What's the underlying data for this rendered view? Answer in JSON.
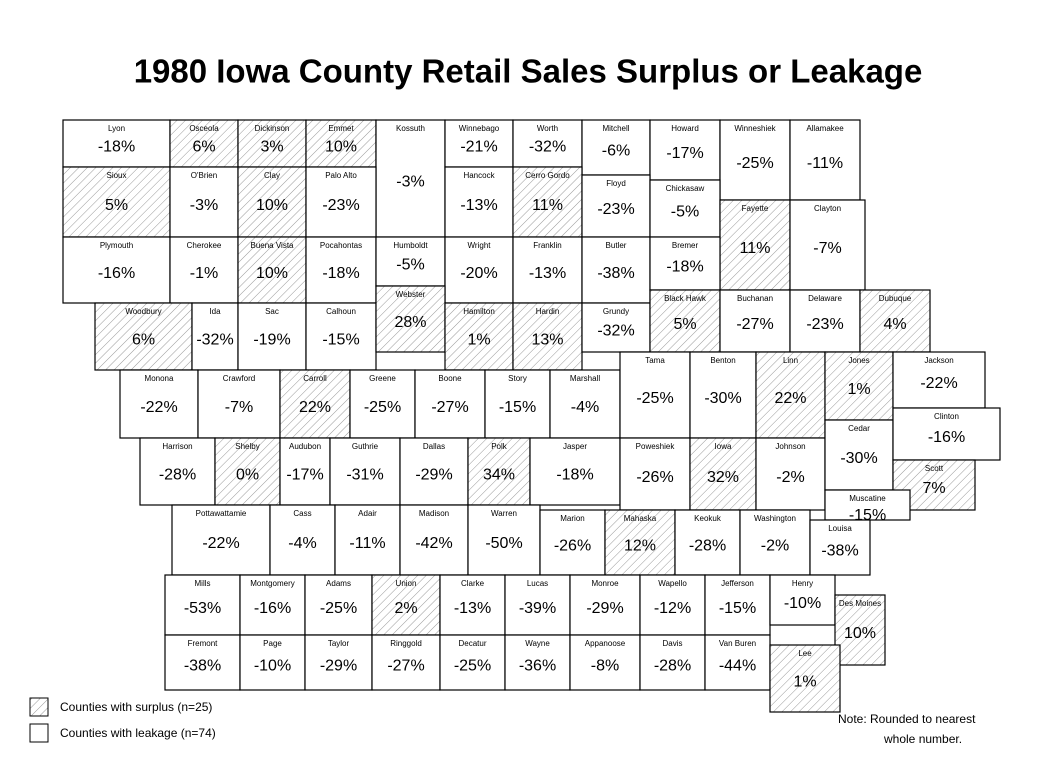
{
  "title": "1980 Iowa County Retail Sales Surplus or Leakage",
  "counties": [
    {
      "name": "Lyon",
      "value": "-18%",
      "surplus": false
    },
    {
      "name": "Osceola",
      "value": "6%",
      "surplus": true
    },
    {
      "name": "Dickinson",
      "value": "3%",
      "surplus": true
    },
    {
      "name": "Emmet",
      "value": "10%",
      "surplus": true
    },
    {
      "name": "Kossuth",
      "value": "-3%",
      "surplus": false
    },
    {
      "name": "Winnebago",
      "value": "-21%",
      "surplus": false
    },
    {
      "name": "Worth",
      "value": "-32%",
      "surplus": false
    },
    {
      "name": "Mitchell",
      "value": "-6%",
      "surplus": false
    },
    {
      "name": "Howard",
      "value": "-17%",
      "surplus": false
    },
    {
      "name": "Winneshiek",
      "value": "-25%",
      "surplus": false
    },
    {
      "name": "Allamakee",
      "value": "-11%",
      "surplus": false
    },
    {
      "name": "Sioux",
      "value": "5%",
      "surplus": true
    },
    {
      "name": "O'Brien",
      "value": "-3%",
      "surplus": false
    },
    {
      "name": "Clay",
      "value": "10%",
      "surplus": true
    },
    {
      "name": "Palo Alto",
      "value": "-23%",
      "surplus": false
    },
    {
      "name": "Hancock",
      "value": "-13%",
      "surplus": false
    },
    {
      "name": "Cerro Gordo",
      "value": "11%",
      "surplus": true
    },
    {
      "name": "Floyd",
      "value": "-23%",
      "surplus": false
    },
    {
      "name": "Chickasaw",
      "value": "-5%",
      "surplus": false
    },
    {
      "name": "Fayette",
      "value": "11%",
      "surplus": true
    },
    {
      "name": "Clayton",
      "value": "-7%",
      "surplus": false
    },
    {
      "name": "Plymouth",
      "value": "-16%",
      "surplus": false
    },
    {
      "name": "Cherokee",
      "value": "-1%",
      "surplus": false
    },
    {
      "name": "Buena Vista",
      "value": "10%",
      "surplus": true
    },
    {
      "name": "Pocahontas",
      "value": "-18%",
      "surplus": false
    },
    {
      "name": "Humboldt",
      "value": "-5%",
      "surplus": false
    },
    {
      "name": "Wright",
      "value": "-20%",
      "surplus": false
    },
    {
      "name": "Franklin",
      "value": "-13%",
      "surplus": false
    },
    {
      "name": "Butler",
      "value": "-38%",
      "surplus": false
    },
    {
      "name": "Bremer",
      "value": "-18%",
      "surplus": false
    },
    {
      "name": "Woodbury",
      "value": "6%",
      "surplus": true
    },
    {
      "name": "Ida",
      "value": "-32%",
      "surplus": false
    },
    {
      "name": "Sac",
      "value": "-19%",
      "surplus": false
    },
    {
      "name": "Calhoun",
      "value": "-15%",
      "surplus": false
    },
    {
      "name": "Webster",
      "value": "28%",
      "surplus": true
    },
    {
      "name": "Hamilton",
      "value": "1%",
      "surplus": true
    },
    {
      "name": "Hardin",
      "value": "13%",
      "surplus": true
    },
    {
      "name": "Grundy",
      "value": "-32%",
      "surplus": false
    },
    {
      "name": "Black Hawk",
      "value": "5%",
      "surplus": true
    },
    {
      "name": "Buchanan",
      "value": "-27%",
      "surplus": false
    },
    {
      "name": "Delaware",
      "value": "-23%",
      "surplus": false
    },
    {
      "name": "Dubuque",
      "value": "4%",
      "surplus": true
    },
    {
      "name": "Monona",
      "value": "-22%",
      "surplus": false
    },
    {
      "name": "Crawford",
      "value": "-7%",
      "surplus": false
    },
    {
      "name": "Carroll",
      "value": "22%",
      "surplus": true
    },
    {
      "name": "Greene",
      "value": "-25%",
      "surplus": false
    },
    {
      "name": "Boone",
      "value": "-27%",
      "surplus": false
    },
    {
      "name": "Story",
      "value": "-15%",
      "surplus": false
    },
    {
      "name": "Marshall",
      "value": "-4%",
      "surplus": false
    },
    {
      "name": "Tama",
      "value": "-25%",
      "surplus": false
    },
    {
      "name": "Benton",
      "value": "-30%",
      "surplus": false
    },
    {
      "name": "Linn",
      "value": "22%",
      "surplus": true
    },
    {
      "name": "Jones",
      "value": "1%",
      "surplus": true
    },
    {
      "name": "Jackson",
      "value": "-22%",
      "surplus": false
    },
    {
      "name": "Harrison",
      "value": "-28%",
      "surplus": false
    },
    {
      "name": "Shelby",
      "value": "0%",
      "surplus": true
    },
    {
      "name": "Audubon",
      "value": "-17%",
      "surplus": false
    },
    {
      "name": "Guthrie",
      "value": "-31%",
      "surplus": false
    },
    {
      "name": "Dallas",
      "value": "-29%",
      "surplus": false
    },
    {
      "name": "Polk",
      "value": "34%",
      "surplus": true
    },
    {
      "name": "Jasper",
      "value": "-18%",
      "surplus": false
    },
    {
      "name": "Poweshiek",
      "value": "-26%",
      "surplus": false
    },
    {
      "name": "Iowa",
      "value": "32%",
      "surplus": true
    },
    {
      "name": "Johnson",
      "value": "-2%",
      "surplus": false
    },
    {
      "name": "Cedar",
      "value": "-30%",
      "surplus": false
    },
    {
      "name": "Clinton",
      "value": "-16%",
      "surplus": false
    },
    {
      "name": "Scott",
      "value": "7%",
      "surplus": true
    },
    {
      "name": "Pottawattamie",
      "value": "-22%",
      "surplus": false
    },
    {
      "name": "Cass",
      "value": "-4%",
      "surplus": false
    },
    {
      "name": "Adair",
      "value": "-11%",
      "surplus": false
    },
    {
      "name": "Madison",
      "value": "-42%",
      "surplus": false
    },
    {
      "name": "Warren",
      "value": "-50%",
      "surplus": false
    },
    {
      "name": "Marion",
      "value": "-26%",
      "surplus": false
    },
    {
      "name": "Mahaska",
      "value": "12%",
      "surplus": true
    },
    {
      "name": "Keokuk",
      "value": "-28%",
      "surplus": false
    },
    {
      "name": "Washington",
      "value": "-2%",
      "surplus": false
    },
    {
      "name": "Muscatine",
      "value": "-15%",
      "surplus": false
    },
    {
      "name": "Louisa",
      "value": "-38%",
      "surplus": false
    },
    {
      "name": "Mills",
      "value": "-53%",
      "surplus": false
    },
    {
      "name": "Montgomery",
      "value": "-16%",
      "surplus": false
    },
    {
      "name": "Adams",
      "value": "-25%",
      "surplus": false
    },
    {
      "name": "Union",
      "value": "2%",
      "surplus": true
    },
    {
      "name": "Clarke",
      "value": "-13%",
      "surplus": false
    },
    {
      "name": "Lucas",
      "value": "-39%",
      "surplus": false
    },
    {
      "name": "Monroe",
      "value": "-29%",
      "surplus": false
    },
    {
      "name": "Wapello",
      "value": "-12%",
      "surplus": false
    },
    {
      "name": "Jefferson",
      "value": "-15%",
      "surplus": false
    },
    {
      "name": "Henry",
      "value": "-10%",
      "surplus": false
    },
    {
      "name": "Des Moines",
      "value": "10%",
      "surplus": true
    },
    {
      "name": "Fremont",
      "value": "-38%",
      "surplus": false
    },
    {
      "name": "Page",
      "value": "-10%",
      "surplus": false
    },
    {
      "name": "Taylor",
      "value": "-29%",
      "surplus": false
    },
    {
      "name": "Ringgold",
      "value": "-27%",
      "surplus": false
    },
    {
      "name": "Decatur",
      "value": "-25%",
      "surplus": false
    },
    {
      "name": "Wayne",
      "value": "-36%",
      "surplus": false
    },
    {
      "name": "Appanoose",
      "value": "-8%",
      "surplus": false
    },
    {
      "name": "Davis",
      "value": "-28%",
      "surplus": false
    },
    {
      "name": "Van Buren",
      "value": "-44%",
      "surplus": false
    },
    {
      "name": "Lee",
      "value": "1%",
      "surplus": true
    }
  ],
  "legend": {
    "surplus": "Counties with surplus (n=25)",
    "leakage": "Counties with leakage (n=74)"
  },
  "note": [
    "Note: Rounded to nearest",
    "whole number."
  ]
}
